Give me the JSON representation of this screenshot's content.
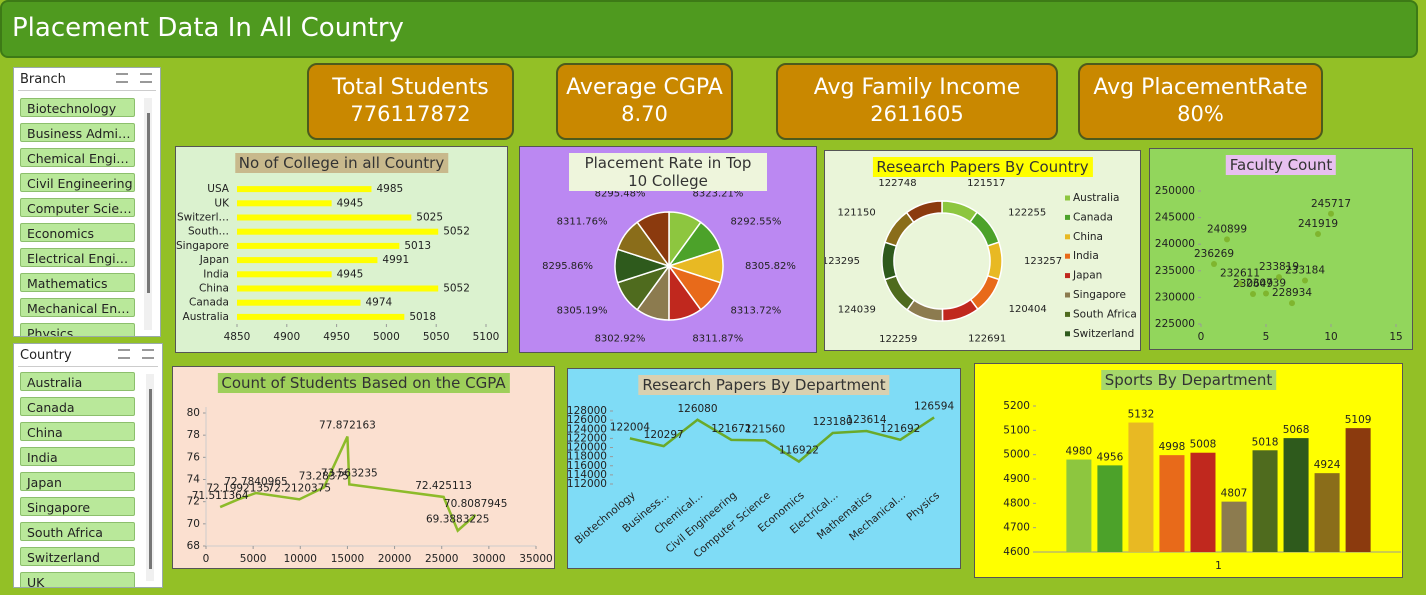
{
  "header": {
    "title": "Placement Data In All Country"
  },
  "slicers": [
    {
      "title": "Branch",
      "items": [
        "Biotechnology",
        "Business Admi…",
        "Chemical Engi…",
        "Civil Engineering",
        "Computer Scie…",
        "Economics",
        "Electrical Engi…",
        "Mathematics",
        "Mechanical En…",
        "Physics"
      ]
    },
    {
      "title": "Country",
      "items": [
        "Australia",
        "Canada",
        "China",
        "India",
        "Japan",
        "Singapore",
        "South Africa",
        "Switzerland",
        "UK"
      ]
    }
  ],
  "kpis": [
    {
      "label": "Total Students",
      "value": 776117872
    },
    {
      "label": "Average CGPA",
      "value": 8.7,
      "value_label": "8.70"
    },
    {
      "label": "Avg Family Income",
      "value": 2611605
    },
    {
      "label": "Avg PlacementRate",
      "value": 80,
      "value_label": "80%"
    }
  ],
  "chart_data": [
    {
      "type": "bar",
      "orientation": "horizontal",
      "title": "No of College in all Country",
      "categories": [
        "USA",
        "UK",
        "Switzerl…",
        "South…",
        "Singapore",
        "Japan",
        "India",
        "China",
        "Canada",
        "Australia"
      ],
      "values": [
        4985,
        4945,
        5025,
        5052,
        5013,
        4991,
        4945,
        5052,
        4974,
        5018
      ],
      "color": "#ffff00",
      "xlim": [
        4850,
        5100
      ],
      "xticks": [
        4850,
        4900,
        4950,
        5000,
        5050,
        5100
      ]
    },
    {
      "type": "pie",
      "title": "Placement Rate in Top 10 College",
      "values": [
        8323.21,
        8292.55,
        8305.82,
        8313.72,
        8311.87,
        8302.92,
        8305.19,
        8295.86,
        8311.76,
        8295.48
      ],
      "value_labels": [
        "8323.21%",
        "8292.55%",
        "8305.82%",
        "8313.72%",
        "8311.87%",
        "8302.92%",
        "8305.19%",
        "8295.86%",
        "8311.76%",
        "8295.48%"
      ],
      "colors": [
        "#8dc63f",
        "#4ca22a",
        "#e8b923",
        "#e86a1a",
        "#c0281e",
        "#8c7b4f",
        "#4f6b1e",
        "#2e5a1c",
        "#8a6d1a",
        "#8b3a0e"
      ]
    },
    {
      "type": "donut",
      "title": "Research Papers By Country",
      "categories": [
        "Australia",
        "Canada",
        "China",
        "India",
        "Japan",
        "Singapore",
        "South Africa",
        "Switzerland",
        null,
        null
      ],
      "values": [
        121517,
        122255,
        123257,
        120404,
        122691,
        122259,
        124039,
        123295,
        121150,
        122748
      ],
      "colors": [
        "#8dc63f",
        "#4ca22a",
        "#e8b923",
        "#e86a1a",
        "#c0281e",
        "#8c7b4f",
        "#4f6b1e",
        "#2e5a1c",
        "#8a6d1a",
        "#8b3a0e"
      ],
      "legend": "right"
    },
    {
      "type": "scatter",
      "title": "Faculty Count",
      "x": [
        1,
        2,
        3,
        4,
        5,
        6,
        7,
        8,
        9,
        10
      ],
      "values": [
        236269,
        240899,
        232611,
        230649,
        230739,
        233819,
        228934,
        233184,
        241919,
        245717
      ],
      "color": "#7fb52e",
      "xlim": [
        0,
        15
      ],
      "xticks": [
        0,
        5,
        10,
        15
      ],
      "ylim": [
        225000,
        250000
      ],
      "yticks": [
        225000,
        230000,
        235000,
        240000,
        245000,
        250000
      ]
    },
    {
      "type": "line",
      "title": "Count of Students Based on the CGPA",
      "x": [
        1500,
        3400,
        5300,
        9900,
        12500,
        15000,
        15200,
        25200,
        26700,
        28600
      ],
      "values": [
        71.511364,
        72.1992135,
        72.7840965,
        72.2120375,
        73.28375,
        77.872163,
        73.563235,
        72.425113,
        69.3883225,
        70.8087945
      ],
      "color": "#8dbb2a",
      "xlim": [
        0,
        35000
      ],
      "xticks": [
        0,
        5000,
        10000,
        15000,
        20000,
        25000,
        30000,
        35000
      ],
      "ylim": [
        68,
        80
      ],
      "yticks": [
        68,
        70,
        72,
        74,
        76,
        78,
        80
      ]
    },
    {
      "type": "line",
      "title": "Research Papers By Department",
      "categories": [
        "Biotechnology",
        "Business…",
        "Chemical…",
        "Civil Engineering",
        "Computer Science",
        "Economics",
        "Electrical…",
        "Mathematics",
        "Mechanical…",
        "Physics"
      ],
      "values": [
        122004,
        120297,
        126080,
        121672,
        121560,
        116922,
        123180,
        123614,
        121692,
        126594
      ],
      "color": "#6aaa2a",
      "ylim": [
        112000,
        128000
      ],
      "yticks": [
        112000,
        114000,
        116000,
        118000,
        120000,
        122000,
        124000,
        126000,
        128000
      ]
    },
    {
      "type": "bar",
      "title": "Sports By Department",
      "categories": [
        "1"
      ],
      "series": [
        {
          "color": "#8dc63f",
          "values": [
            4980
          ]
        },
        {
          "color": "#4ca22a",
          "values": [
            4956
          ]
        },
        {
          "color": "#e8b923",
          "values": [
            5132
          ]
        },
        {
          "color": "#e86a1a",
          "values": [
            4998
          ]
        },
        {
          "color": "#c0281e",
          "values": [
            5008
          ]
        },
        {
          "color": "#8c7b4f",
          "values": [
            4807
          ]
        },
        {
          "color": "#4f6b1e",
          "values": [
            5018
          ]
        },
        {
          "color": "#2e5a1c",
          "values": [
            5068
          ]
        },
        {
          "color": "#8a6d1a",
          "values": [
            4924
          ]
        },
        {
          "color": "#8b3a0e",
          "values": [
            5109
          ]
        }
      ],
      "ylim": [
        4600,
        5200
      ],
      "yticks": [
        4600,
        4700,
        4800,
        4900,
        5000,
        5100,
        5200
      ]
    }
  ]
}
